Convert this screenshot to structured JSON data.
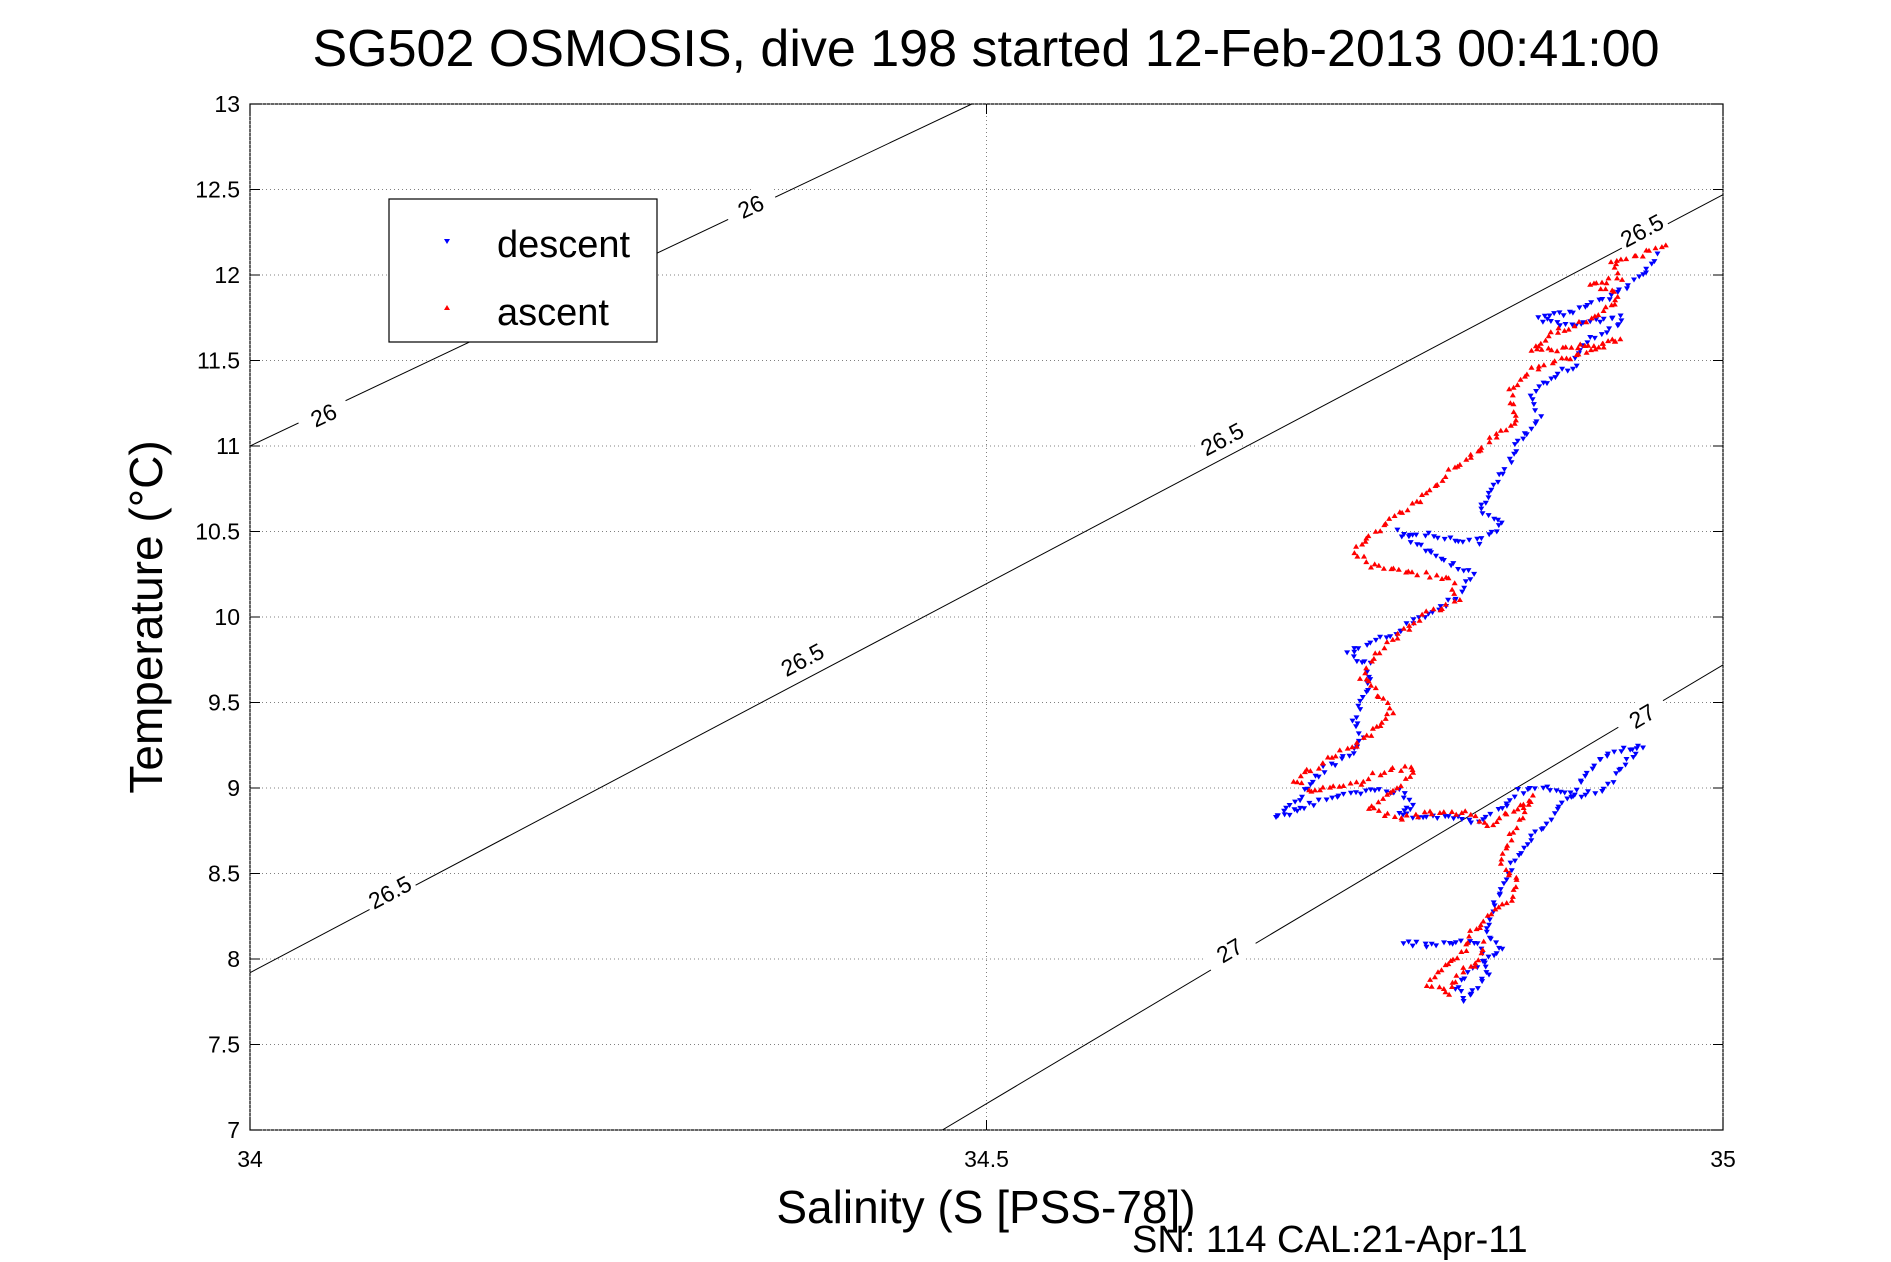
{
  "chart_data": {
    "type": "scatter",
    "title": "SG502 OSMOSIS, dive 198 started 12-Feb-2013 00:41:00",
    "xlabel": "Salinity (S [PSS-78])",
    "ylabel": "Temperature (°C)",
    "footer": "SN: 114  CAL:21-Apr-11",
    "xlim": [
      34,
      35
    ],
    "ylim": [
      7,
      13
    ],
    "xticks": [
      34,
      34.5,
      35
    ],
    "xtick_labels": [
      "34",
      "34.5",
      "35"
    ],
    "yticks": [
      7,
      7.5,
      8,
      8.5,
      9,
      9.5,
      10,
      10.5,
      11,
      11.5,
      12,
      12.5,
      13
    ],
    "ytick_labels": [
      "7",
      "7.5",
      "8",
      "8.5",
      "9",
      "9.5",
      "10",
      "10.5",
      "11",
      "11.5",
      "12",
      "12.5",
      "13"
    ],
    "grid": true,
    "legend": {
      "position": "top-left",
      "entries": [
        "descent",
        "ascent"
      ]
    },
    "colors": {
      "descent": "#0000ff",
      "ascent": "#ff0000",
      "contour": "#000000",
      "grid": "#808080"
    },
    "contours": [
      {
        "label": "26",
        "points": [
          [
            34.0,
            11.0
          ],
          [
            34.49,
            13.0
          ]
        ],
        "labels": [
          {
            "text": "26",
            "x": 34.05,
            "y": 11.18
          },
          {
            "text": "26",
            "x": 34.34,
            "y": 12.4
          }
        ]
      },
      {
        "label": "26.5",
        "points": [
          [
            34.0,
            7.92
          ],
          [
            35.0,
            12.47
          ]
        ],
        "labels": [
          {
            "text": "26.5",
            "x": 34.095,
            "y": 8.39
          },
          {
            "text": "26.5",
            "x": 34.375,
            "y": 9.75
          },
          {
            "text": "26.5",
            "x": 34.66,
            "y": 11.04
          },
          {
            "text": "26.5",
            "x": 34.945,
            "y": 12.26
          }
        ]
      },
      {
        "label": "27",
        "points": [
          [
            34.47,
            7.0
          ],
          [
            35.0,
            9.72
          ]
        ],
        "labels": [
          {
            "text": "27",
            "x": 34.665,
            "y": 8.05
          },
          {
            "text": "27",
            "x": 34.945,
            "y": 9.42
          }
        ]
      }
    ],
    "series": [
      {
        "name": "descent",
        "marker": "triangle-down",
        "path": [
          [
            34.955,
            12.12
          ],
          [
            34.945,
            12.0
          ],
          [
            34.925,
            11.88
          ],
          [
            34.895,
            11.78
          ],
          [
            34.875,
            11.75
          ],
          [
            34.89,
            11.7
          ],
          [
            34.93,
            11.76
          ],
          [
            34.93,
            11.72
          ],
          [
            34.905,
            11.6
          ],
          [
            34.9,
            11.48
          ],
          [
            34.88,
            11.38
          ],
          [
            34.87,
            11.3
          ],
          [
            34.875,
            11.18
          ],
          [
            34.87,
            11.1
          ],
          [
            34.86,
            11.0
          ],
          [
            34.855,
            10.9
          ],
          [
            34.845,
            10.78
          ],
          [
            34.84,
            10.7
          ],
          [
            34.835,
            10.62
          ],
          [
            34.85,
            10.55
          ],
          [
            34.835,
            10.44
          ],
          [
            34.8,
            10.48
          ],
          [
            34.78,
            10.5
          ],
          [
            34.8,
            10.38
          ],
          [
            34.83,
            10.25
          ],
          [
            34.82,
            10.12
          ],
          [
            34.8,
            10.02
          ],
          [
            34.78,
            9.92
          ],
          [
            34.76,
            9.85
          ],
          [
            34.745,
            9.78
          ],
          [
            34.76,
            9.72
          ],
          [
            34.76,
            9.6
          ],
          [
            34.755,
            9.5
          ],
          [
            34.75,
            9.4
          ],
          [
            34.755,
            9.3
          ],
          [
            34.75,
            9.2
          ],
          [
            34.73,
            9.12
          ],
          [
            34.72,
            9.02
          ],
          [
            34.71,
            8.92
          ],
          [
            34.695,
            8.83
          ],
          [
            34.72,
            8.9
          ],
          [
            34.75,
            8.98
          ],
          [
            34.78,
            8.98
          ],
          [
            34.79,
            8.9
          ],
          [
            34.78,
            8.84
          ],
          [
            34.8,
            8.84
          ],
          [
            34.82,
            8.82
          ],
          [
            34.83,
            8.8
          ],
          [
            34.85,
            8.88
          ],
          [
            34.86,
            8.98
          ],
          [
            34.88,
            9.0
          ],
          [
            34.9,
            8.95
          ],
          [
            34.92,
            9.0
          ],
          [
            34.93,
            9.12
          ],
          [
            34.945,
            9.25
          ],
          [
            34.92,
            9.2
          ],
          [
            34.9,
            9.0
          ],
          [
            34.88,
            8.8
          ],
          [
            34.86,
            8.6
          ],
          [
            34.85,
            8.45
          ],
          [
            34.845,
            8.3
          ],
          [
            34.84,
            8.15
          ],
          [
            34.85,
            8.05
          ],
          [
            34.83,
            7.95
          ],
          [
            34.82,
            7.82
          ],
          [
            34.825,
            7.76
          ],
          [
            34.84,
            7.9
          ],
          [
            34.835,
            8.08
          ],
          [
            34.82,
            8.1
          ],
          [
            34.8,
            8.08
          ],
          [
            34.78,
            8.1
          ]
        ]
      },
      {
        "name": "ascent",
        "marker": "triangle-up",
        "path": [
          [
            34.96,
            12.17
          ],
          [
            34.945,
            12.12
          ],
          [
            34.925,
            12.08
          ],
          [
            34.93,
            11.98
          ],
          [
            34.91,
            11.95
          ],
          [
            34.93,
            11.88
          ],
          [
            34.92,
            11.78
          ],
          [
            34.9,
            11.7
          ],
          [
            34.88,
            11.65
          ],
          [
            34.87,
            11.55
          ],
          [
            34.9,
            11.58
          ],
          [
            34.93,
            11.62
          ],
          [
            34.89,
            11.5
          ],
          [
            34.87,
            11.45
          ],
          [
            34.855,
            11.32
          ],
          [
            34.86,
            11.15
          ],
          [
            34.845,
            11.05
          ],
          [
            34.83,
            10.95
          ],
          [
            34.815,
            10.85
          ],
          [
            34.8,
            10.72
          ],
          [
            34.78,
            10.6
          ],
          [
            34.76,
            10.48
          ],
          [
            34.75,
            10.38
          ],
          [
            34.76,
            10.3
          ],
          [
            34.79,
            10.26
          ],
          [
            34.815,
            10.22
          ],
          [
            34.82,
            10.1
          ],
          [
            34.8,
            10.02
          ],
          [
            34.78,
            9.9
          ],
          [
            34.765,
            9.78
          ],
          [
            34.755,
            9.65
          ],
          [
            34.765,
            9.55
          ],
          [
            34.775,
            9.45
          ],
          [
            34.765,
            9.35
          ],
          [
            34.75,
            9.25
          ],
          [
            34.73,
            9.15
          ],
          [
            34.71,
            9.05
          ],
          [
            34.72,
            8.98
          ],
          [
            34.75,
            9.02
          ],
          [
            34.77,
            9.1
          ],
          [
            34.79,
            9.12
          ],
          [
            34.78,
            9.0
          ],
          [
            34.76,
            8.88
          ],
          [
            34.78,
            8.82
          ],
          [
            34.8,
            8.85
          ],
          [
            34.825,
            8.85
          ],
          [
            34.84,
            8.78
          ],
          [
            34.86,
            8.88
          ],
          [
            34.87,
            8.95
          ],
          [
            34.855,
            8.7
          ],
          [
            34.85,
            8.55
          ],
          [
            34.86,
            8.45
          ],
          [
            34.855,
            8.35
          ],
          [
            34.84,
            8.25
          ],
          [
            34.83,
            8.15
          ],
          [
            34.825,
            8.05
          ],
          [
            34.81,
            7.95
          ],
          [
            34.8,
            7.85
          ],
          [
            34.815,
            7.8
          ],
          [
            34.82,
            7.9
          ],
          [
            34.835,
            8.0
          ],
          [
            34.84,
            8.12
          ]
        ]
      }
    ]
  }
}
